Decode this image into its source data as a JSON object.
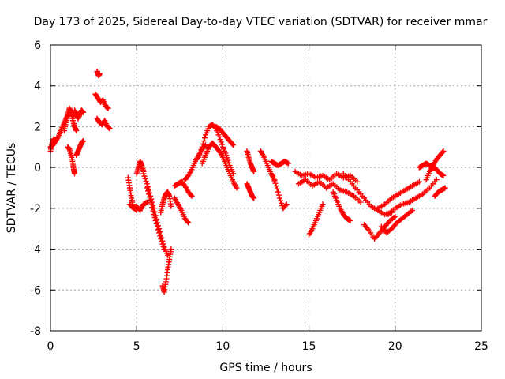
{
  "chart_data": {
    "type": "scatter",
    "title": "Day 173 of 2025, Sidereal Day-to-day VTEC variation (SDTVAR) for receiver mmar",
    "xlabel": "GPS time / hours",
    "ylabel": "SDTVAR / TECUs",
    "xlim": [
      0,
      25
    ],
    "ylim": [
      -8,
      6
    ],
    "xticks": [
      0,
      5,
      10,
      15,
      20,
      25
    ],
    "yticks": [
      -8,
      -6,
      -4,
      -2,
      0,
      2,
      4,
      6
    ],
    "xtick_labels": [
      "0",
      "5",
      "10",
      "15",
      "20",
      "25"
    ],
    "ytick_labels": [
      "-8",
      "-6",
      "-4",
      "-2",
      "0",
      "2",
      "4",
      "6"
    ],
    "grid": true,
    "marker": "+",
    "marker_color": "#ff0000",
    "series": [
      {
        "name": "s1",
        "x": [
          0.0,
          0.15,
          0.3,
          0.45,
          0.6,
          0.75,
          0.9,
          1.05,
          1.2,
          1.35
        ],
        "y": [
          1.0,
          1.1,
          1.3,
          1.5,
          1.8,
          2.1,
          2.4,
          2.6,
          2.7,
          2.5
        ]
      },
      {
        "name": "s2",
        "x": [
          0.0,
          0.1,
          0.2,
          0.3
        ],
        "y": [
          0.8,
          1.2,
          1.4,
          1.3
        ]
      },
      {
        "name": "s3",
        "x": [
          0.8,
          0.9,
          1.0,
          1.1,
          1.2,
          1.3,
          1.4,
          1.5
        ],
        "y": [
          1.8,
          2.2,
          2.6,
          2.9,
          2.7,
          2.3,
          2.0,
          1.8
        ]
      },
      {
        "name": "s4",
        "x": [
          1.0,
          1.1,
          1.2,
          1.3,
          1.35,
          1.4
        ],
        "y": [
          1.0,
          0.9,
          0.6,
          0.2,
          -0.1,
          -0.3
        ]
      },
      {
        "name": "s5",
        "x": [
          1.4,
          1.5,
          1.6,
          1.7,
          1.8,
          1.9
        ],
        "y": [
          2.8,
          2.6,
          2.4,
          2.6,
          2.8,
          2.7
        ]
      },
      {
        "name": "s6",
        "x": [
          1.5,
          1.6,
          1.7,
          1.8,
          1.9
        ],
        "y": [
          0.6,
          0.8,
          1.0,
          1.2,
          1.3
        ]
      },
      {
        "name": "s7",
        "x": [
          2.7,
          2.75,
          2.8,
          2.85
        ],
        "y": [
          4.7,
          4.6,
          4.5,
          4.6
        ]
      },
      {
        "name": "s8",
        "x": [
          2.6,
          2.75,
          2.9,
          3.05,
          3.2,
          3.35
        ],
        "y": [
          3.6,
          3.4,
          3.2,
          3.3,
          3.0,
          2.9
        ]
      },
      {
        "name": "s9",
        "x": [
          2.7,
          2.85,
          3.0,
          3.15,
          3.3,
          3.45
        ],
        "y": [
          2.4,
          2.2,
          2.1,
          2.3,
          2.0,
          1.9
        ]
      },
      {
        "name": "s10",
        "x": [
          4.5,
          4.6,
          4.7,
          4.8,
          4.9,
          5.0
        ],
        "y": [
          -0.5,
          -1.0,
          -1.5,
          -1.9,
          -2.0,
          -2.1
        ]
      },
      {
        "name": "s11",
        "x": [
          4.6,
          4.8,
          5.0,
          5.2,
          5.4,
          5.6
        ],
        "y": [
          -1.8,
          -2.0,
          -1.9,
          -2.1,
          -1.8,
          -1.7
        ]
      },
      {
        "name": "s12",
        "x": [
          5.0,
          5.1,
          5.2,
          5.3,
          5.4
        ],
        "y": [
          -0.3,
          0.0,
          0.3,
          0.1,
          -0.2
        ]
      },
      {
        "name": "s13",
        "x": [
          5.4,
          5.6,
          5.8,
          6.0,
          6.2,
          6.4,
          6.6,
          6.8
        ],
        "y": [
          -0.3,
          -0.8,
          -1.4,
          -2.0,
          -2.7,
          -3.3,
          -3.9,
          -4.3
        ]
      },
      {
        "name": "s14",
        "x": [
          5.6,
          5.8,
          6.0,
          6.2,
          6.4,
          6.6
        ],
        "y": [
          -1.0,
          -1.6,
          -2.3,
          -2.9,
          -3.5,
          -4.0
        ]
      },
      {
        "name": "s15",
        "x": [
          6.5,
          6.6,
          6.7,
          6.8,
          6.9,
          7.0
        ],
        "y": [
          -5.8,
          -6.1,
          -5.6,
          -5.0,
          -4.5,
          -4.0
        ]
      },
      {
        "name": "s16",
        "x": [
          6.4,
          6.5,
          6.6,
          6.7,
          6.8,
          6.9,
          7.0
        ],
        "y": [
          -2.2,
          -1.8,
          -1.5,
          -1.3,
          -1.2,
          -1.4,
          -1.9
        ]
      },
      {
        "name": "s17",
        "x": [
          7.2,
          7.4,
          7.6,
          7.8,
          8.0
        ],
        "y": [
          -1.5,
          -1.8,
          -2.1,
          -2.5,
          -2.7
        ]
      },
      {
        "name": "s18",
        "x": [
          7.2,
          7.4,
          7.6,
          7.8,
          8.0,
          8.2
        ],
        "y": [
          -0.9,
          -0.8,
          -0.7,
          -0.9,
          -1.2,
          -1.4
        ]
      },
      {
        "name": "s19",
        "x": [
          7.8,
          8.0,
          8.2,
          8.4,
          8.6,
          8.8,
          9.0
        ],
        "y": [
          -0.6,
          -0.4,
          -0.1,
          0.3,
          0.6,
          0.9,
          1.1
        ]
      },
      {
        "name": "s20",
        "x": [
          8.6,
          8.8,
          9.0,
          9.2,
          9.4,
          9.6,
          9.8,
          10.0,
          10.2,
          10.4,
          10.6
        ],
        "y": [
          0.5,
          1.0,
          1.6,
          2.0,
          2.1,
          1.9,
          1.5,
          1.0,
          0.6,
          0.1,
          -0.3
        ]
      },
      {
        "name": "s21",
        "x": [
          8.8,
          9.0,
          9.2,
          9.4,
          9.6,
          9.8,
          10.0,
          10.2,
          10.4,
          10.6,
          10.8
        ],
        "y": [
          0.2,
          0.6,
          1.0,
          1.2,
          1.0,
          0.8,
          0.5,
          0.1,
          -0.3,
          -0.7,
          -1.0
        ]
      },
      {
        "name": "s22",
        "x": [
          9.6,
          9.8,
          10.0,
          10.2,
          10.4,
          10.6
        ],
        "y": [
          2.0,
          1.9,
          1.7,
          1.5,
          1.3,
          1.1
        ]
      },
      {
        "name": "s23",
        "x": [
          11.4,
          11.5,
          11.6,
          11.7,
          11.8
        ],
        "y": [
          0.8,
          0.5,
          0.2,
          0.0,
          -0.2
        ]
      },
      {
        "name": "s24",
        "x": [
          11.4,
          11.5,
          11.6,
          11.7,
          11.8
        ],
        "y": [
          -0.8,
          -1.0,
          -1.2,
          -1.4,
          -1.5
        ]
      },
      {
        "name": "s25",
        "x": [
          12.2,
          12.4,
          12.6,
          12.8,
          13.0
        ],
        "y": [
          0.8,
          0.5,
          0.1,
          -0.3,
          -0.6
        ]
      },
      {
        "name": "s26",
        "x": [
          12.8,
          13.0,
          13.2,
          13.4,
          13.6,
          13.8
        ],
        "y": [
          0.3,
          0.2,
          0.1,
          0.2,
          0.3,
          0.2
        ]
      },
      {
        "name": "s27",
        "x": [
          12.9,
          13.1,
          13.3,
          13.5,
          13.7
        ],
        "y": [
          -0.4,
          -0.9,
          -1.5,
          -2.0,
          -1.8
        ]
      },
      {
        "name": "s28",
        "x": [
          14.2,
          14.6,
          15.0,
          15.4,
          15.8,
          16.2,
          16.6,
          17.0,
          17.4,
          17.8
        ],
        "y": [
          -0.2,
          -0.4,
          -0.3,
          -0.5,
          -0.4,
          -0.6,
          -0.3,
          -0.5,
          -0.4,
          -0.7
        ]
      },
      {
        "name": "s29",
        "x": [
          14.4,
          14.8,
          15.2,
          15.6,
          16.0,
          16.4,
          16.8,
          17.2,
          17.6,
          18.0
        ],
        "y": [
          -0.8,
          -0.6,
          -0.9,
          -0.7,
          -1.0,
          -0.8,
          -1.1,
          -1.2,
          -1.4,
          -1.7
        ]
      },
      {
        "name": "s30",
        "x": [
          15.0,
          15.2,
          15.4,
          15.6,
          15.8
        ],
        "y": [
          -3.3,
          -3.0,
          -2.6,
          -2.2,
          -1.8
        ]
      },
      {
        "name": "s31",
        "x": [
          16.4,
          16.6,
          16.8,
          17.0,
          17.2,
          17.4
        ],
        "y": [
          -1.2,
          -1.6,
          -2.0,
          -2.3,
          -2.5,
          -2.6
        ]
      },
      {
        "name": "s32",
        "x": [
          17.0,
          17.4,
          17.8,
          18.2,
          18.6,
          19.0,
          19.4,
          19.8
        ],
        "y": [
          -0.3,
          -0.7,
          -1.1,
          -1.5,
          -1.9,
          -2.1,
          -2.3,
          -2.2
        ]
      },
      {
        "name": "s33",
        "x": [
          18.2,
          18.5,
          18.8,
          19.1,
          19.4,
          19.7,
          20.0
        ],
        "y": [
          -2.8,
          -3.1,
          -3.5,
          -3.2,
          -2.9,
          -2.6,
          -2.4
        ]
      },
      {
        "name": "s34",
        "x": [
          19.2,
          19.5,
          19.8,
          20.1,
          20.4,
          20.7,
          21.0
        ],
        "y": [
          -2.9,
          -3.2,
          -3.0,
          -2.7,
          -2.5,
          -2.3,
          -2.1
        ]
      },
      {
        "name": "s35",
        "x": [
          19.0,
          19.4,
          19.8,
          20.2,
          20.6,
          21.0,
          21.4
        ],
        "y": [
          -2.0,
          -1.8,
          -1.5,
          -1.3,
          -1.1,
          -0.9,
          -0.7
        ]
      },
      {
        "name": "s36",
        "x": [
          19.6,
          20.0,
          20.4,
          20.8,
          21.2,
          21.6,
          22.0,
          22.4
        ],
        "y": [
          -2.3,
          -2.0,
          -1.8,
          -1.7,
          -1.5,
          -1.3,
          -1.0,
          -0.6
        ]
      },
      {
        "name": "s37",
        "x": [
          21.8,
          22.0,
          22.2,
          22.4,
          22.6,
          22.8
        ],
        "y": [
          -0.6,
          -0.2,
          0.1,
          0.4,
          0.6,
          0.8
        ]
      },
      {
        "name": "s38",
        "x": [
          21.4,
          21.6,
          21.8,
          22.0,
          22.2,
          22.4,
          22.6,
          22.8
        ],
        "y": [
          0.0,
          0.1,
          0.2,
          0.1,
          0.0,
          -0.1,
          -0.3,
          -0.4
        ]
      },
      {
        "name": "s39",
        "x": [
          22.3,
          22.5,
          22.7,
          22.9
        ],
        "y": [
          -1.4,
          -1.2,
          -1.1,
          -1.0
        ]
      }
    ]
  }
}
